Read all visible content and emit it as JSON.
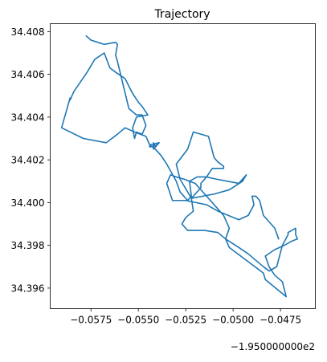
{
  "chart_data": {
    "type": "line",
    "title": "Trajectory",
    "xlabel": "",
    "ylabel": "",
    "x_offset_label": "−1.950000000e2",
    "xlim": [
      -0.05965,
      -0.04566
    ],
    "ylim": [
      34.39504,
      34.40837
    ],
    "x_tick_values": [
      -0.0575,
      -0.055,
      -0.0525,
      -0.05,
      -0.0475
    ],
    "x_tick_labels": [
      "−0.0575",
      "−0.0550",
      "−0.0525",
      "−0.0500",
      "−0.0475"
    ],
    "y_tick_values": [
      34.396,
      34.398,
      34.4,
      34.402,
      34.404,
      34.406,
      34.408
    ],
    "y_tick_labels": [
      "34.396",
      "34.398",
      "34.400",
      "34.402",
      "34.404",
      "34.406",
      "34.408"
    ],
    "grid": false,
    "color": "#1f77b4",
    "series": [
      {
        "x": [
          -0.05775,
          -0.0575,
          -0.0568,
          -0.0562,
          -0.0561,
          -0.0562,
          -0.0561,
          -0.0555,
          -0.0551,
          -0.0548,
          -0.0546,
          -0.0548,
          -0.0551,
          -0.0552,
          -0.0553,
          -0.0551,
          -0.0545,
          -0.0548,
          -0.055,
          -0.0553,
          -0.0557,
          -0.0562,
          -0.0565,
          -0.0568,
          -0.0573,
          -0.0577,
          -0.0584,
          -0.0586,
          -0.0586,
          -0.05905,
          -0.0579,
          -0.0567,
          -0.0561,
          -0.0557,
          -0.0552,
          -0.0546,
          -0.0544,
          -0.0544,
          -0.054,
          -0.0541,
          -0.0542,
          -0.0542,
          -0.0539,
          -0.0544,
          -0.0541,
          -0.0538,
          -0.0535,
          -0.053,
          -0.0528,
          -0.0524,
          -0.0522,
          -0.0523,
          -0.0519,
          -0.0514,
          -0.0509,
          -0.0497,
          -0.0493,
          -0.0495,
          -0.0502,
          -0.051,
          -0.0522,
          -0.0526,
          -0.0528,
          -0.053,
          -0.0524,
          -0.0521,
          -0.0513,
          -0.051,
          -0.0508,
          -0.0505,
          -0.0505,
          -0.0511,
          -0.0514,
          -0.0517,
          -0.0517,
          -0.0522,
          -0.0521,
          -0.0525,
          -0.0527,
          -0.0525,
          -0.0524,
          -0.0518,
          -0.0515,
          -0.0508,
          -0.0504,
          -0.0497,
          -0.0492,
          -0.0484,
          -0.0481,
          -0.0477,
          -0.0474,
          -0.0471,
          -0.0471,
          -0.0467,
          -0.0467,
          -0.0466,
          -0.0469,
          -0.0473,
          -0.0478,
          -0.0483,
          -0.0481,
          -0.0478,
          -0.0474,
          -0.0472,
          -0.0483,
          -0.0484,
          -0.049,
          -0.0496,
          -0.0502,
          -0.0504,
          -0.0502,
          -0.0505,
          -0.051,
          -0.0515,
          -0.052,
          -0.0526,
          -0.053,
          -0.0533,
          -0.0535,
          -0.0532,
          -0.0525,
          -0.0514,
          -0.0508,
          -0.0497,
          -0.0492,
          -0.0489,
          -0.049,
          -0.0488,
          -0.0486,
          -0.0484,
          -0.0478,
          -0.0476
        ],
        "y": [
          34.4078,
          34.4076,
          34.4074,
          34.4075,
          34.4074,
          34.4069,
          34.4066,
          34.4044,
          34.4041,
          34.4041,
          34.4036,
          34.4032,
          34.4033,
          34.403,
          34.4035,
          34.404,
          34.4041,
          34.4045,
          34.4047,
          34.4051,
          34.4058,
          34.4061,
          34.4063,
          34.407,
          34.4067,
          34.4061,
          34.4052,
          34.4048,
          34.4049,
          34.4035,
          34.403,
          34.4028,
          34.4032,
          34.4035,
          34.4033,
          34.4031,
          34.4027,
          34.4026,
          34.4027,
          34.4026,
          34.4028,
          34.4025,
          34.4028,
          34.4027,
          34.4025,
          34.4022,
          34.4018,
          34.401,
          34.4005,
          34.4001,
          34.4003,
          34.401,
          34.4012,
          34.4012,
          34.4011,
          34.4009,
          34.4013,
          34.401,
          34.4006,
          34.4004,
          34.4002,
          34.4008,
          34.4011,
          34.4018,
          34.4025,
          34.4033,
          34.4031,
          34.4021,
          34.4019,
          34.4017,
          34.4016,
          34.4016,
          34.4012,
          34.4009,
          34.4007,
          34.4002,
          34.3996,
          34.3993,
          34.399,
          34.3988,
          34.3987,
          34.3987,
          34.3987,
          34.3986,
          34.3983,
          34.3979,
          34.3976,
          34.397,
          34.3968,
          34.397,
          34.398,
          34.3985,
          34.3986,
          34.3988,
          34.3985,
          34.3983,
          34.3982,
          34.398,
          34.3978,
          34.3975,
          34.397,
          34.3966,
          34.3963,
          34.3956,
          34.3964,
          34.3967,
          34.3971,
          34.3975,
          34.3979,
          34.3983,
          34.3988,
          34.3994,
          34.3999,
          34.4004,
          34.4009,
          34.4011,
          34.4012,
          34.4013,
          34.4009,
          34.4001,
          34.4001,
          34.3999,
          34.3996,
          34.3992,
          34.3994,
          34.3999,
          34.4003,
          34.4003,
          34.4001,
          34.3994,
          34.3988,
          34.3983
        ]
      }
    ]
  }
}
